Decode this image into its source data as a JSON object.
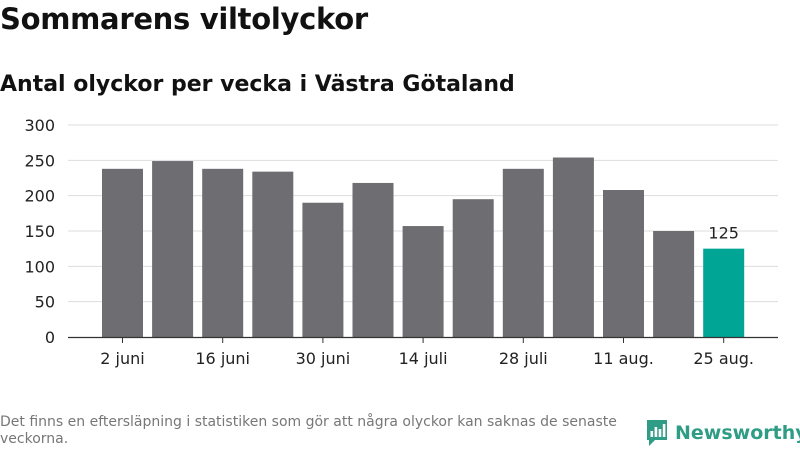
{
  "title": "Sommarens viltolyckor",
  "subtitle": "Antal olyckor per vecka i Västra Götaland",
  "footnote": "Det finns en eftersläpning i statistiken som gör att några olyckor kan saknas de senaste veckorna.",
  "brand": "Newsworthy",
  "colors": {
    "bar": "#6e6d72",
    "highlight": "#00a596",
    "grid": "#dddddd",
    "axis": "#333333",
    "brand": "#2f9c86"
  },
  "chart_data": {
    "type": "bar",
    "values": [
      238,
      249,
      238,
      234,
      190,
      218,
      157,
      195,
      238,
      254,
      208,
      150,
      125
    ],
    "highlight_index": 12,
    "data_labels": [
      {
        "index": 12,
        "text": "125"
      }
    ],
    "xticks": [
      {
        "index": 0,
        "label": "2 juni"
      },
      {
        "index": 2,
        "label": "16 juni"
      },
      {
        "index": 4,
        "label": "30 juni"
      },
      {
        "index": 6,
        "label": "14 juli"
      },
      {
        "index": 8,
        "label": "28 juli"
      },
      {
        "index": 10,
        "label": "11 aug."
      },
      {
        "index": 12,
        "label": "25 aug."
      }
    ],
    "yticks": [
      0,
      50,
      100,
      150,
      200,
      250,
      300
    ],
    "ylim": [
      0,
      300
    ],
    "grid": true
  }
}
